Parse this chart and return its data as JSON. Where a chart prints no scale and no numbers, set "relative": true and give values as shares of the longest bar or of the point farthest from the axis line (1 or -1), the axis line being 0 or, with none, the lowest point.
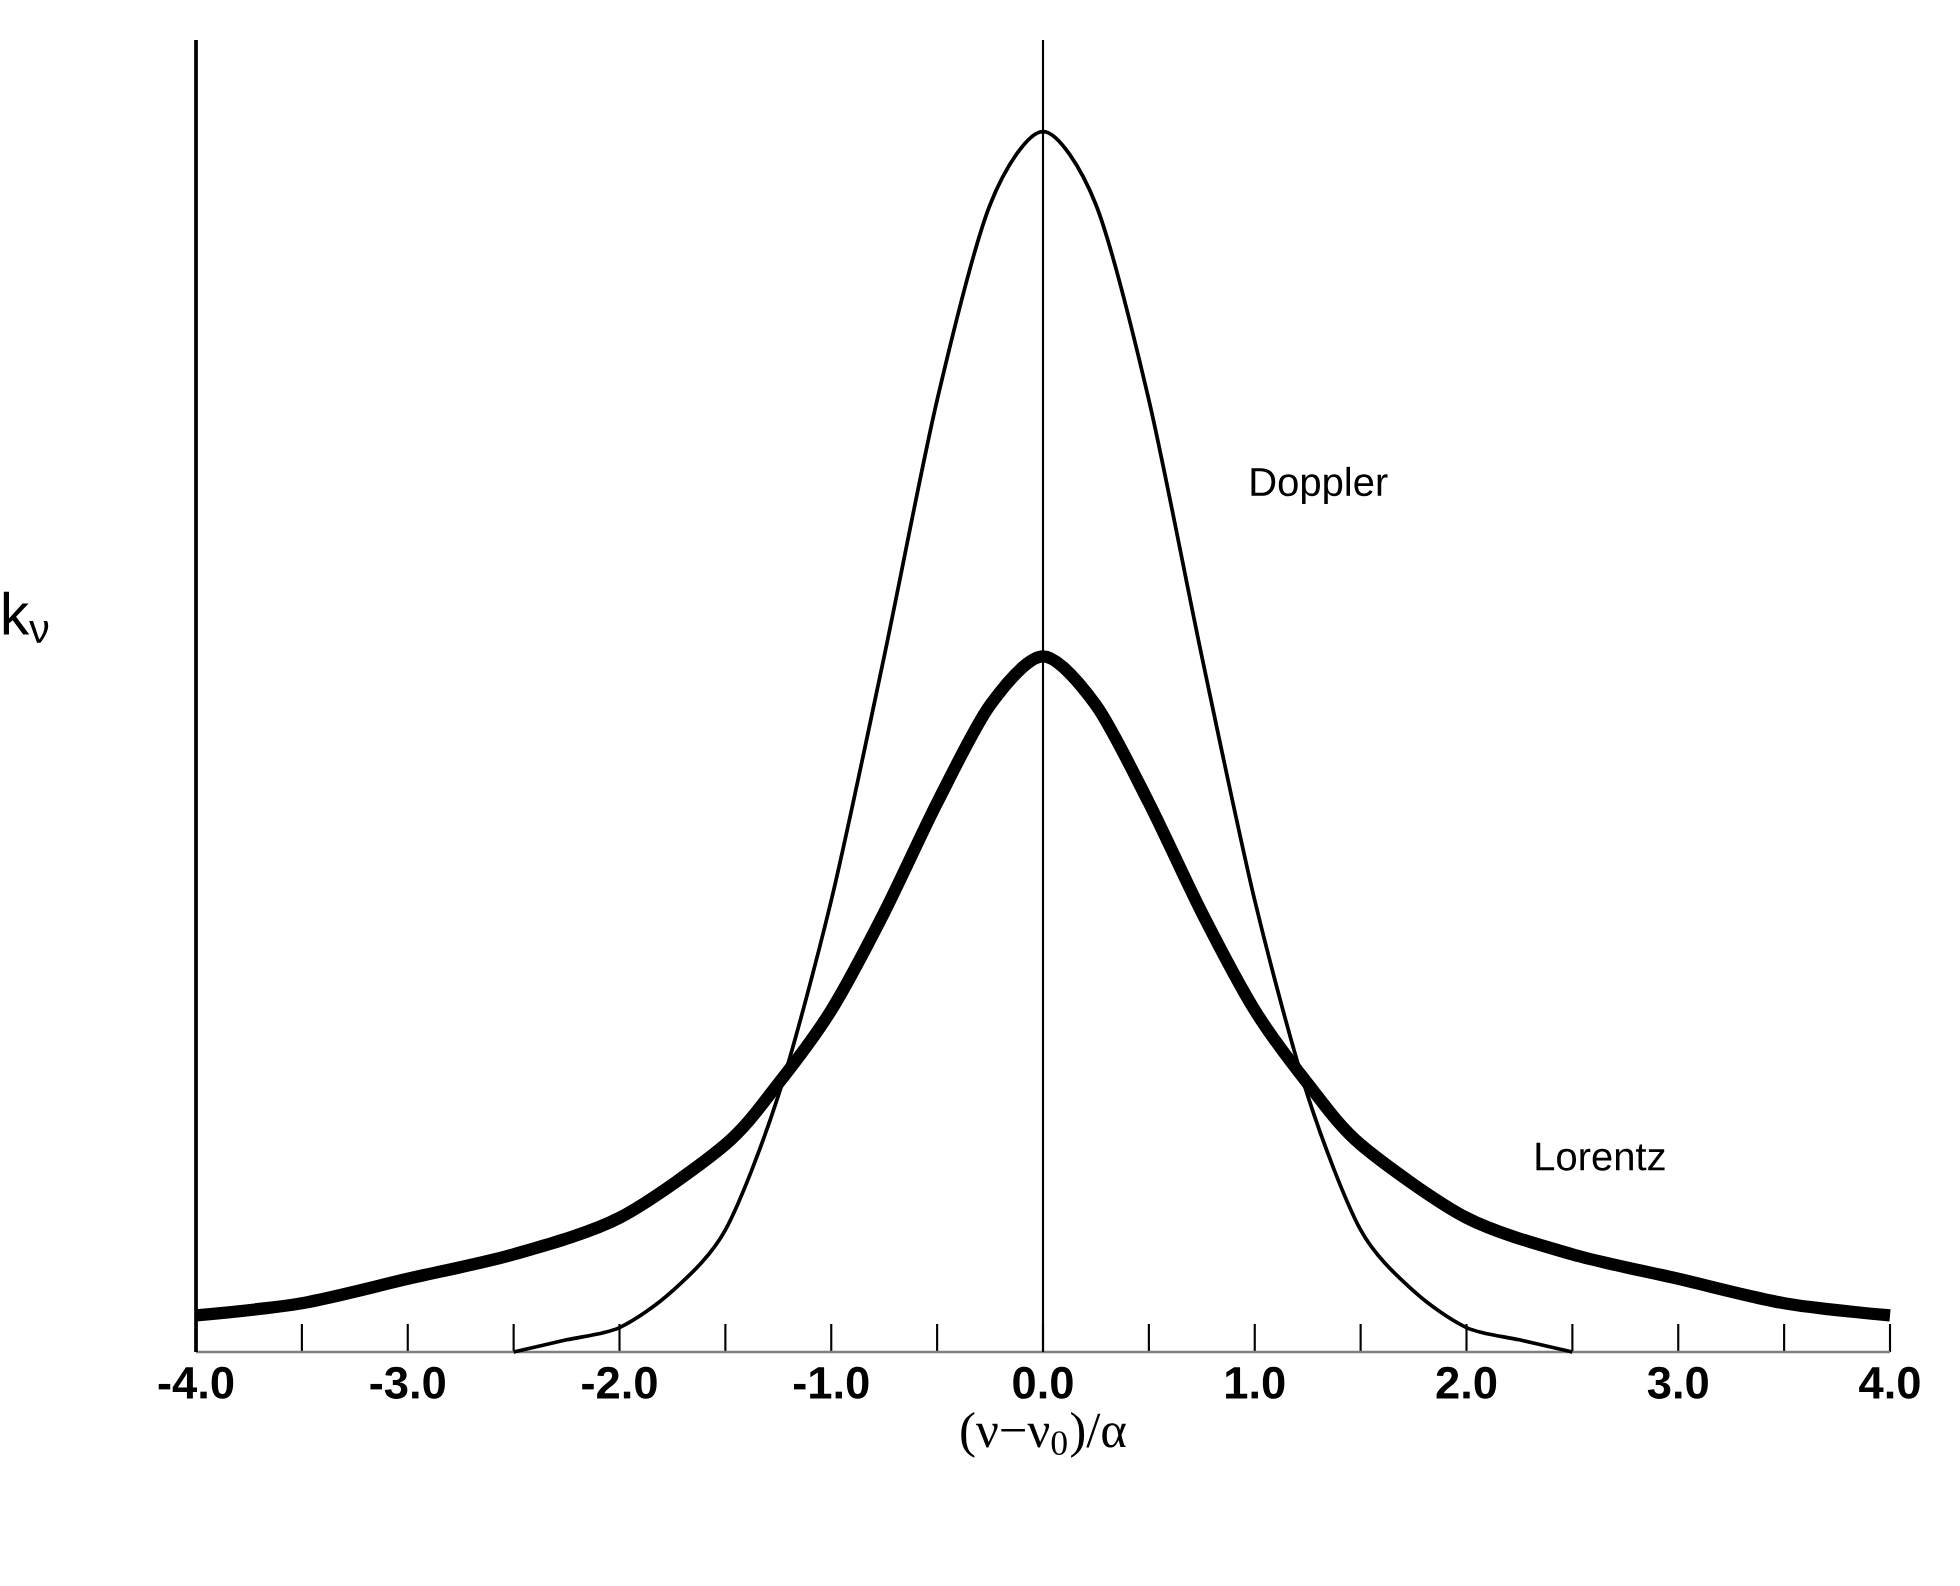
{
  "chart_data": {
    "type": "line",
    "relative": true,
    "xlabel": "(ν−ν$_{0}$)/α",
    "ylabel": "k$_{ν}$",
    "xlim": [
      -4.0,
      4.0
    ],
    "xticks": [
      {
        "value": -4,
        "label": "-4.0"
      },
      {
        "value": -3.5,
        "label": null
      },
      {
        "value": -3,
        "label": "-3.0"
      },
      {
        "value": -2.5,
        "label": null
      },
      {
        "value": -2,
        "label": "-2.0"
      },
      {
        "value": -1.5,
        "label": null
      },
      {
        "value": -1,
        "label": "-1.0"
      },
      {
        "value": -0.5,
        "label": null
      },
      {
        "value": 0,
        "label": "0.0"
      },
      {
        "value": 0.5,
        "label": null
      },
      {
        "value": 1,
        "label": "1.0"
      },
      {
        "value": 1.5,
        "label": null
      },
      {
        "value": 2,
        "label": "2.0"
      },
      {
        "value": 2.5,
        "label": null
      },
      {
        "value": 3,
        "label": "3.0"
      },
      {
        "value": 3.5,
        "label": null
      },
      {
        "value": 4,
        "label": "4.0"
      }
    ],
    "ref_lines": [
      {
        "axis": "x",
        "value": 0,
        "color": "#000000"
      }
    ],
    "series": [
      {
        "name": "Doppler",
        "color": "#000000",
        "x": [
          -2.5,
          -2.25,
          -2.0,
          -1.75,
          -1.5,
          -1.25,
          -1.0,
          -0.75,
          -0.5,
          -0.25,
          0.0,
          0.25,
          0.5,
          0.75,
          1.0,
          1.25,
          1.5,
          1.75,
          2.0,
          2.25,
          2.5
        ],
        "values": [
          0.0,
          0.01,
          0.02,
          0.05,
          0.1,
          0.21,
          0.37,
          0.57,
          0.78,
          0.94,
          1.0,
          0.94,
          0.78,
          0.57,
          0.37,
          0.21,
          0.1,
          0.05,
          0.02,
          0.01,
          0.0
        ]
      },
      {
        "name": "Lorentz",
        "color": "#000000",
        "x": [
          -4.0,
          -3.5,
          -3.0,
          -2.5,
          -2.0,
          -1.5,
          -1.25,
          -1.0,
          -0.75,
          -0.5,
          -0.25,
          0.0,
          0.25,
          0.5,
          0.75,
          1.0,
          1.25,
          1.5,
          2.0,
          2.5,
          3.0,
          3.5,
          4.0
        ],
        "values": [
          0.03,
          0.04,
          0.06,
          0.08,
          0.11,
          0.17,
          0.22,
          0.28,
          0.36,
          0.45,
          0.53,
          0.57,
          0.53,
          0.45,
          0.36,
          0.28,
          0.22,
          0.17,
          0.11,
          0.08,
          0.06,
          0.04,
          0.03
        ]
      }
    ]
  }
}
